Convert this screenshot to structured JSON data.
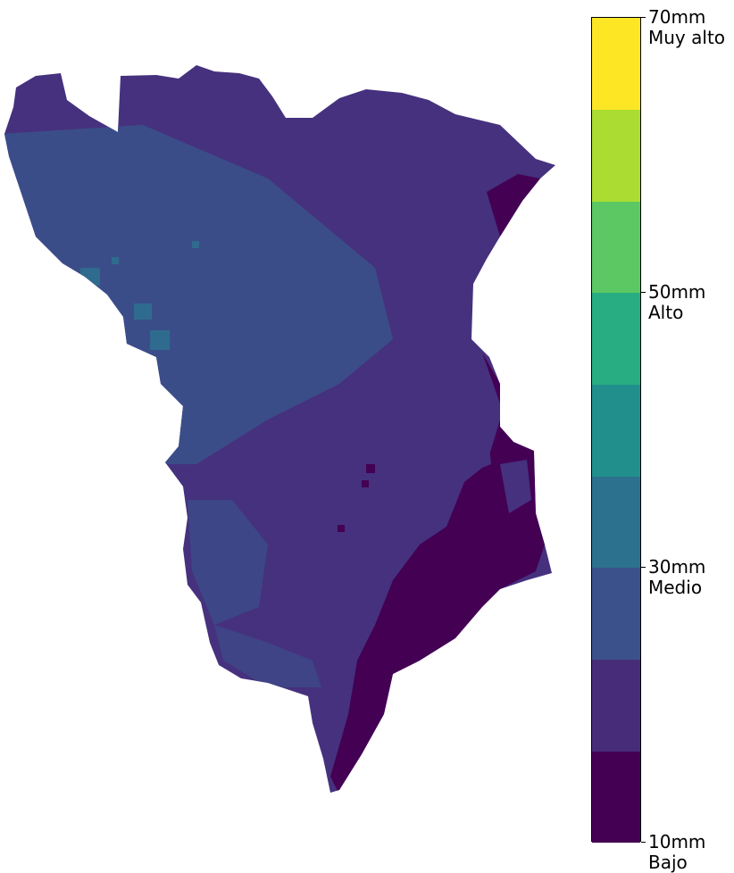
{
  "map": {
    "region_fill_levels": {
      "base": "#46317e",
      "light": "#3b4d89",
      "teal": "#2f6b8e",
      "dark": "#440154"
    }
  },
  "colorbar": {
    "min_value": 10,
    "max_value": 70,
    "bins": [
      {
        "from": 10,
        "to": 16.67,
        "color": "#440154"
      },
      {
        "from": 16.67,
        "to": 23.33,
        "color": "#472c7a"
      },
      {
        "from": 23.33,
        "to": 30,
        "color": "#3b518b"
      },
      {
        "from": 30,
        "to": 36.67,
        "color": "#2c718e"
      },
      {
        "from": 36.67,
        "to": 43.33,
        "color": "#21908d"
      },
      {
        "from": 43.33,
        "to": 50,
        "color": "#27ad81"
      },
      {
        "from": 50,
        "to": 56.67,
        "color": "#5cc863"
      },
      {
        "from": 56.67,
        "to": 63.33,
        "color": "#aadc32"
      },
      {
        "from": 63.33,
        "to": 70,
        "color": "#fde725"
      }
    ],
    "ticks": [
      {
        "value": 10,
        "amount": "10mm",
        "category": "Bajo"
      },
      {
        "value": 30,
        "amount": "30mm",
        "category": "Medio"
      },
      {
        "value": 50,
        "amount": "50mm",
        "category": "Alto"
      },
      {
        "value": 70,
        "amount": "70mm",
        "category": "Muy alto"
      }
    ]
  }
}
